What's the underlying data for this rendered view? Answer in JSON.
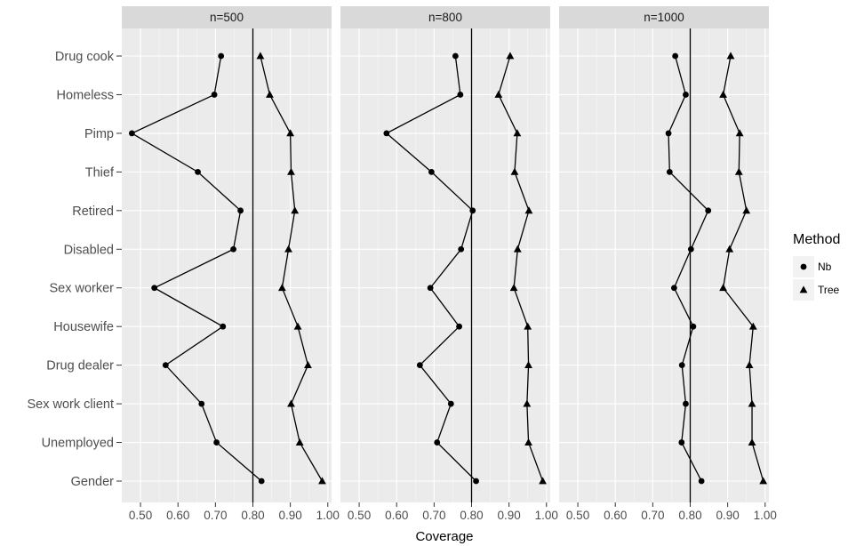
{
  "chart_data": {
    "type": "line",
    "xlabel": "Coverage",
    "ylabel": "",
    "xlim": [
      0.45,
      1.01
    ],
    "x_ticks": [
      "0.50",
      "0.60",
      "0.70",
      "0.80",
      "0.90",
      "1.00"
    ],
    "reference_line": 0.8,
    "categories": [
      "Drug cook",
      "Homeless",
      "Pimp",
      "Thief",
      "Retired",
      "Disabled",
      "Sex worker",
      "Housewife",
      "Drug dealer",
      "Sex work client",
      "Unemployed",
      "Gender"
    ],
    "legend": {
      "title": "Method",
      "position": "right",
      "items": [
        {
          "label": "Nb",
          "shape": "circle"
        },
        {
          "label": "Tree",
          "shape": "triangle"
        }
      ]
    },
    "panels": [
      {
        "label": "n=500",
        "series": [
          {
            "name": "Nb",
            "values": [
              0.715,
              0.697,
              0.477,
              0.653,
              0.767,
              0.748,
              0.537,
              0.72,
              0.567,
              0.663,
              0.703,
              0.823
            ]
          },
          {
            "name": "Tree",
            "values": [
              0.82,
              0.845,
              0.9,
              0.902,
              0.912,
              0.895,
              0.878,
              0.92,
              0.947,
              0.902,
              0.925,
              0.985
            ]
          }
        ]
      },
      {
        "label": "n=800",
        "series": [
          {
            "name": "Nb",
            "values": [
              0.757,
              0.77,
              0.573,
              0.693,
              0.803,
              0.772,
              0.69,
              0.767,
              0.662,
              0.745,
              0.708,
              0.812
            ]
          },
          {
            "name": "Tree",
            "values": [
              0.903,
              0.872,
              0.922,
              0.915,
              0.953,
              0.923,
              0.913,
              0.95,
              0.952,
              0.948,
              0.952,
              0.99
            ]
          }
        ]
      },
      {
        "label": "n=1000",
        "series": [
          {
            "name": "Nb",
            "values": [
              0.76,
              0.788,
              0.742,
              0.745,
              0.848,
              0.802,
              0.757,
              0.808,
              0.778,
              0.788,
              0.777,
              0.83
            ]
          },
          {
            "name": "Tree",
            "values": [
              0.908,
              0.888,
              0.932,
              0.93,
              0.95,
              0.905,
              0.888,
              0.968,
              0.958,
              0.965,
              0.965,
              0.995
            ]
          }
        ]
      }
    ]
  }
}
